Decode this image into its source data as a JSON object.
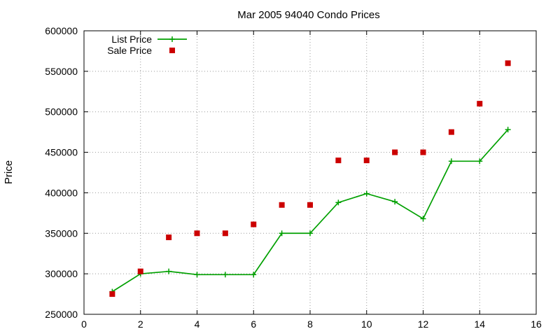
{
  "chart_data": {
    "type": "line",
    "title": "Mar 2005 94040 Condo Prices",
    "xlabel": "",
    "ylabel": "Price",
    "xlim": [
      0,
      16
    ],
    "ylim": [
      250000,
      600000
    ],
    "x_ticks": [
      "0",
      "2",
      "4",
      "6",
      "8",
      "10",
      "12",
      "14",
      "16"
    ],
    "y_ticks": [
      "250000",
      "300000",
      "350000",
      "400000",
      "450000",
      "500000",
      "550000",
      "600000"
    ],
    "grid": true,
    "legend_position": "top-left",
    "series": [
      {
        "name": "List Price",
        "style": "line-plus",
        "color": "#00a000",
        "x": [
          1,
          2,
          3,
          4,
          5,
          6,
          7,
          8,
          9,
          10,
          11,
          12,
          13,
          14,
          15
        ],
        "y": [
          278000,
          300000,
          303000,
          299000,
          299000,
          299000,
          350000,
          350000,
          388000,
          399000,
          389000,
          368000,
          439000,
          439000,
          478000
        ]
      },
      {
        "name": "Sale Price",
        "style": "square-points",
        "color": "#cc0000",
        "x": [
          1,
          2,
          3,
          4,
          5,
          6,
          7,
          8,
          9,
          10,
          11,
          12,
          13,
          14,
          15
        ],
        "y": [
          275000,
          303000,
          345000,
          350000,
          350000,
          361000,
          385000,
          385000,
          440000,
          440000,
          450000,
          450000,
          475000,
          510000,
          560000
        ]
      }
    ]
  }
}
